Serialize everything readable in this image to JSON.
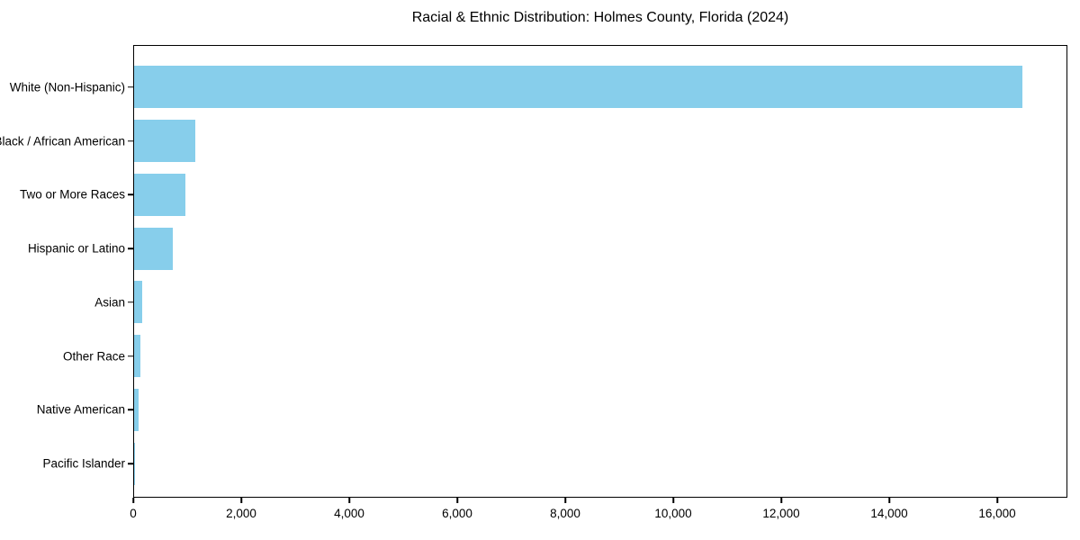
{
  "title": "Racial & Ethnic Distribution: Holmes County, Florida (2024)",
  "chart_data": {
    "type": "bar",
    "orientation": "horizontal",
    "title": "Racial & Ethnic Distribution: Holmes County, Florida (2024)",
    "categories": [
      "White (Non-Hispanic)",
      "Black / African American",
      "Two or More Races",
      "Hispanic or Latino",
      "Asian",
      "Other Race",
      "Native American",
      "Pacific Islander"
    ],
    "values": [
      16430,
      1130,
      950,
      715,
      145,
      110,
      80,
      10
    ],
    "bar_color": "#87CEEB",
    "xlabel": "",
    "ylabel": "",
    "xlim": [
      0,
      17250
    ],
    "x_ticks": [
      0,
      2000,
      4000,
      6000,
      8000,
      10000,
      12000,
      14000,
      16000
    ],
    "x_tick_labels": [
      "0",
      "2,000",
      "4,000",
      "6,000",
      "8,000",
      "10,000",
      "12,000",
      "14,000",
      "16,000"
    ],
    "grid": false,
    "legend": "none",
    "frame_color": "#000000",
    "text_color": "#000000",
    "background_color": "#ffffff"
  }
}
